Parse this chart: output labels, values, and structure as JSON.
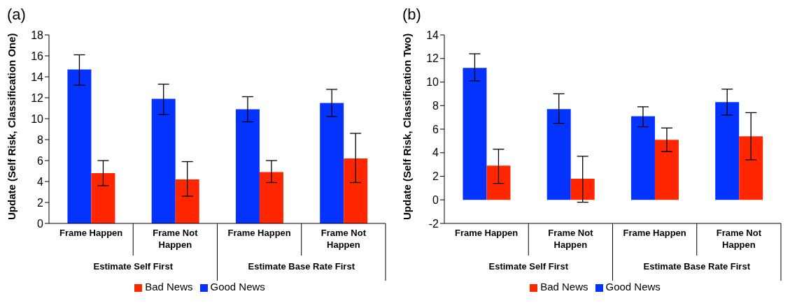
{
  "chart_data": [
    {
      "type": "bar",
      "title": "(a)",
      "ylabel": "Update (Self Risk, Classification One)",
      "categories": [
        "Frame Happen",
        "Frame Not Happen",
        "Frame Happen",
        "Frame Not Happen"
      ],
      "annotations": [
        "Estimate Self First",
        "Estimate Base Rate First"
      ],
      "series": [
        {
          "name": "Good News",
          "color": "#0433ff",
          "values": [
            14.7,
            11.9,
            10.9,
            11.5
          ],
          "errors": [
            [
              13.2,
              16.1
            ],
            [
              10.4,
              13.3
            ],
            [
              9.7,
              12.1
            ],
            [
              10.2,
              12.8
            ]
          ]
        },
        {
          "name": "Bad News",
          "color": "#ff2600",
          "values": [
            4.8,
            4.2,
            4.9,
            6.2
          ],
          "errors": [
            [
              3.6,
              6.0
            ],
            [
              2.6,
              5.9
            ],
            [
              3.9,
              6.0
            ],
            [
              3.9,
              8.6
            ]
          ]
        }
      ],
      "ylim": [
        0,
        18
      ],
      "yticks": [
        0,
        2,
        4,
        6,
        8,
        10,
        12,
        14,
        16,
        18
      ],
      "grid": false,
      "legend": "bottom"
    },
    {
      "type": "bar",
      "title": "(b)",
      "ylabel": "Update (Self Risk, Classification Two)",
      "categories": [
        "Frame Happen",
        "Frame Not Happen",
        "Frame Happen",
        "Frame Not Happen"
      ],
      "annotations": [
        "Estimate Self First",
        "Estimate Base Rate First"
      ],
      "series": [
        {
          "name": "Good News",
          "color": "#0433ff",
          "values": [
            11.2,
            7.7,
            7.1,
            8.3
          ],
          "errors": [
            [
              10.1,
              12.4
            ],
            [
              6.5,
              9.0
            ],
            [
              6.2,
              7.9
            ],
            [
              7.2,
              9.4
            ]
          ]
        },
        {
          "name": "Bad News",
          "color": "#ff2600",
          "values": [
            2.9,
            1.8,
            5.1,
            5.4
          ],
          "errors": [
            [
              1.4,
              4.3
            ],
            [
              -0.2,
              3.7
            ],
            [
              4.1,
              6.1
            ],
            [
              3.4,
              7.4
            ]
          ]
        }
      ],
      "ylim": [
        -2,
        14
      ],
      "yticks": [
        -2,
        0,
        2,
        4,
        6,
        8,
        10,
        12,
        14
      ],
      "grid": false,
      "legend": "bottom"
    }
  ]
}
